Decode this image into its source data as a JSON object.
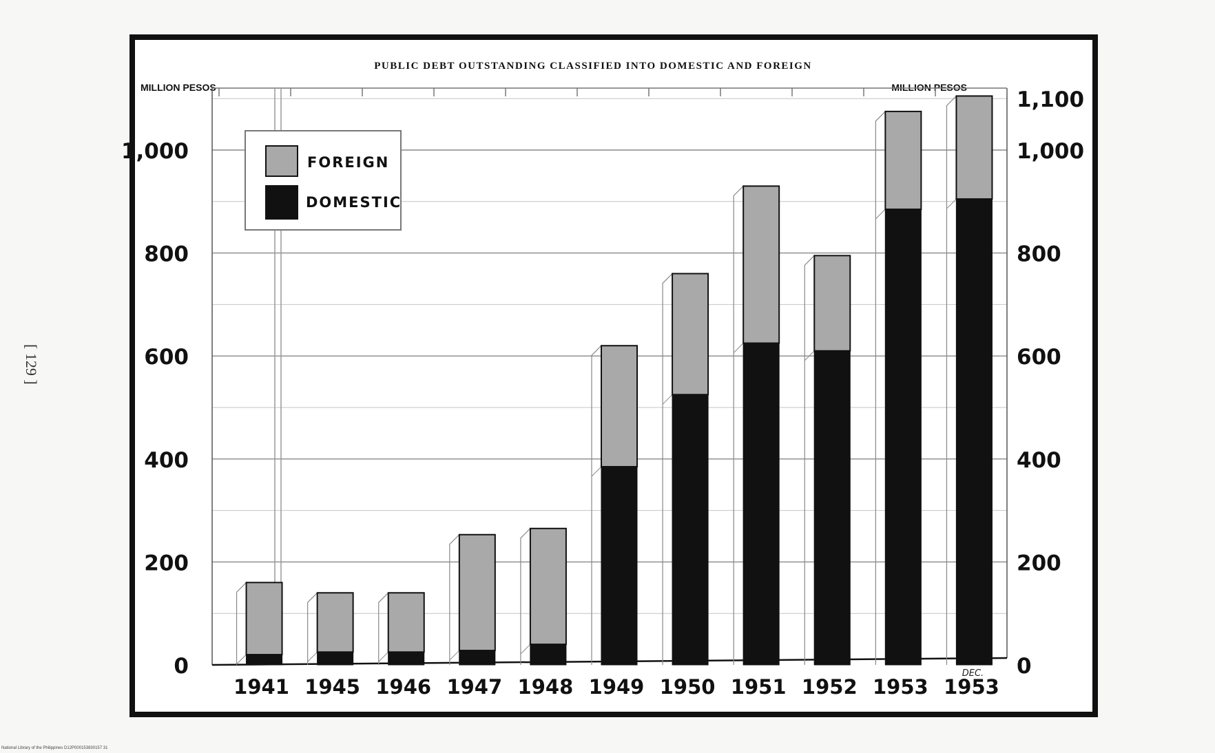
{
  "page": {
    "side_label": "[ 129 ]",
    "footer_credit": "National Library of the Philippines    D12P000153830157 31"
  },
  "colors": {
    "foreign": "#a9a9a9",
    "domestic": "#111111",
    "background": "#ffffff",
    "frame": "#111111"
  },
  "chart_data": {
    "type": "bar",
    "stacked": true,
    "title": "PUBLIC DEBT OUTSTANDING CLASSIFIED INTO DOMESTIC AND FOREIGN",
    "ylabel_left": "MILLION PESOS",
    "ylabel_right": "MILLION PESOS",
    "categories": [
      "1941",
      "1945",
      "1946",
      "1947",
      "1948",
      "1949",
      "1950",
      "1951",
      "1952",
      "1953",
      "1953"
    ],
    "category_notes": [
      "",
      "",
      "",
      "",
      "",
      "",
      "",
      "",
      "",
      "",
      "DEC."
    ],
    "series": [
      {
        "name": "DOMESTIC",
        "values": [
          20,
          25,
          25,
          28,
          40,
          385,
          525,
          625,
          610,
          885,
          905
        ]
      },
      {
        "name": "FOREIGN",
        "values": [
          140,
          115,
          115,
          225,
          225,
          235,
          235,
          305,
          185,
          190,
          200
        ]
      }
    ],
    "left_ticks": [
      "0",
      "200",
      "400",
      "600",
      "800",
      "1,000"
    ],
    "right_ticks": [
      "0",
      "200",
      "400",
      "600",
      "800",
      "1,000",
      "1,100"
    ],
    "left_tick_values": [
      0,
      200,
      400,
      600,
      800,
      1000
    ],
    "right_tick_values": [
      0,
      200,
      400,
      600,
      800,
      1000,
      1100
    ],
    "ylim": [
      0,
      1150
    ],
    "grid": true,
    "legend_position": "top-left"
  }
}
